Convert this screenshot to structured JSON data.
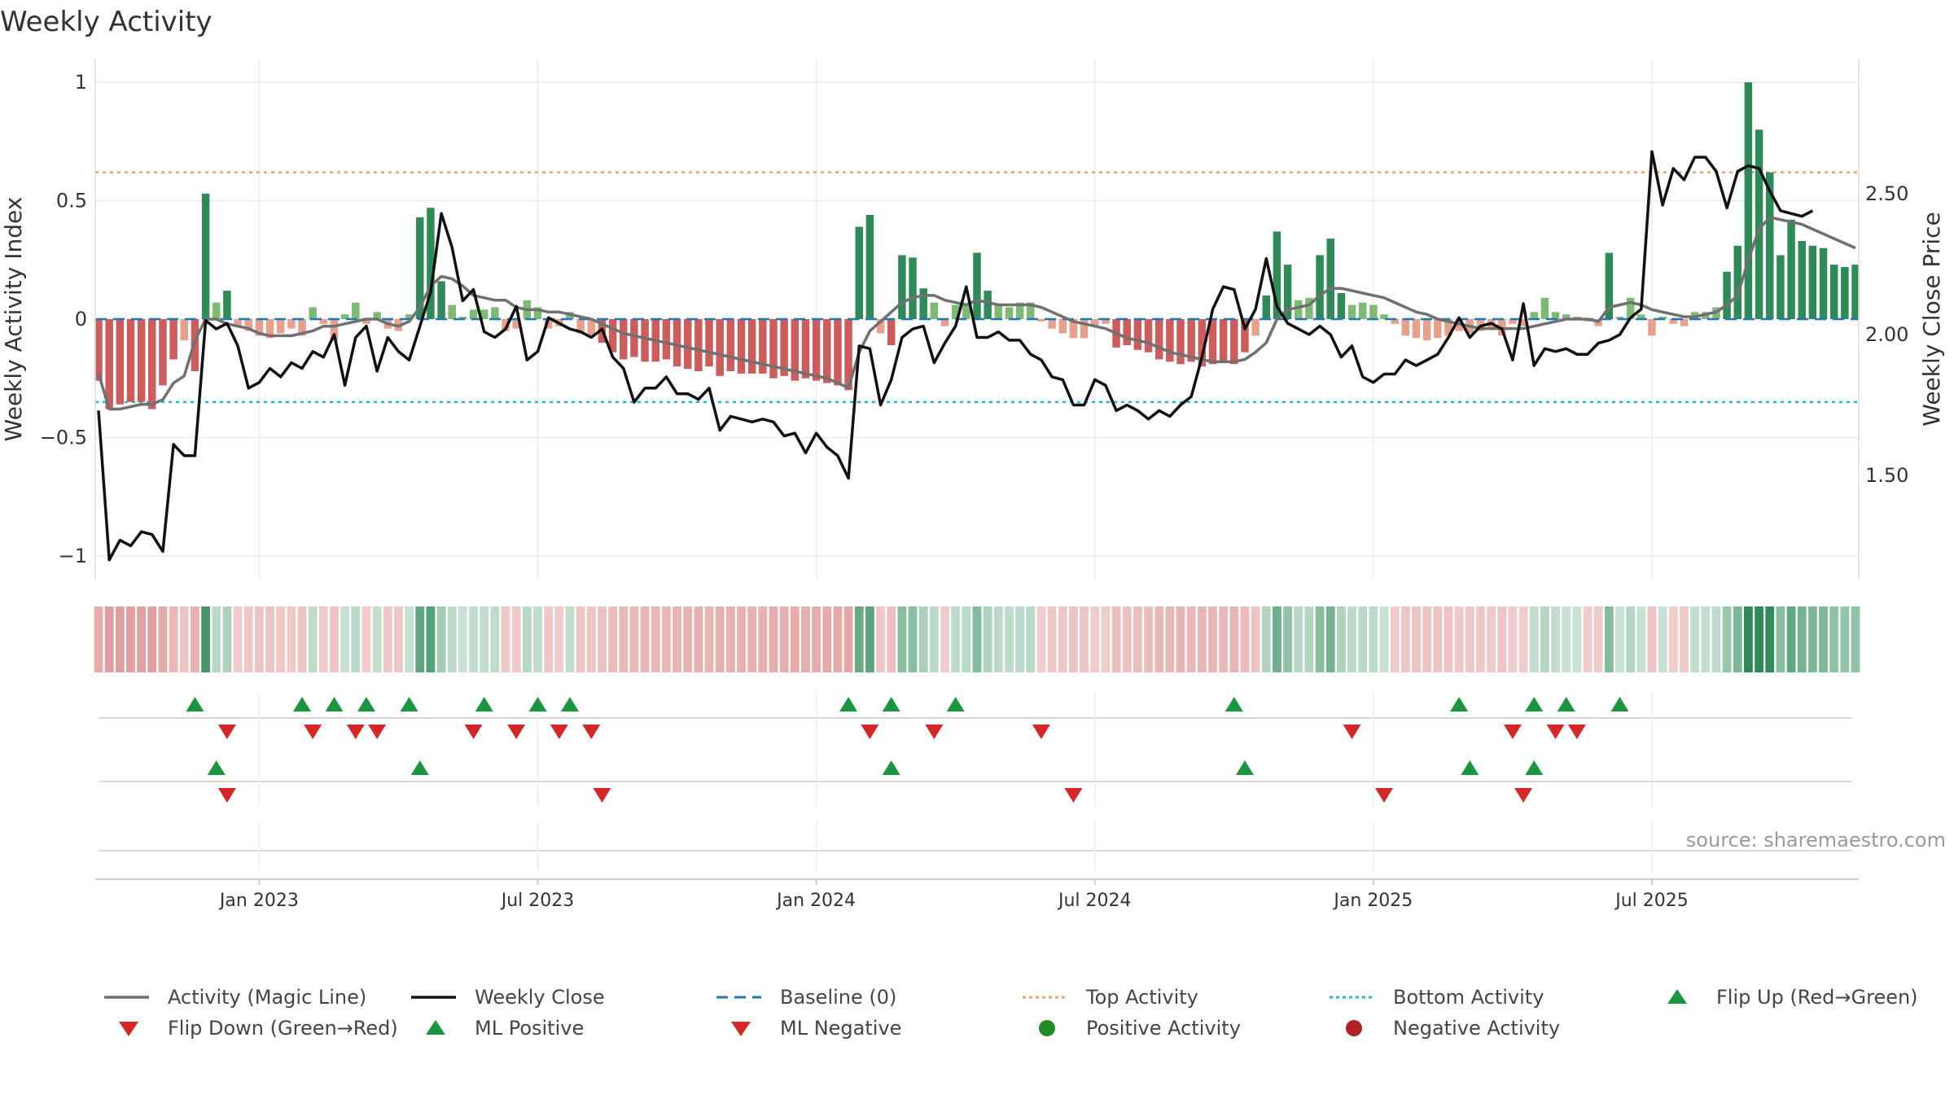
{
  "chart_data": {
    "type": "bar",
    "title": "Weekly Activity",
    "ylabel": "Weekly Activity Index",
    "ylabel_right": "Weekly Close Price",
    "ylim": [
      -1.1,
      1.1
    ],
    "ylim_right": [
      1.13,
      2.98
    ],
    "y_ticks": [
      {
        "value": 1,
        "label": "1"
      },
      {
        "value": 0.5,
        "label": "0.5"
      },
      {
        "value": 0,
        "label": "0"
      },
      {
        "value": -0.5,
        "label": "−0.5"
      },
      {
        "value": -1,
        "label": "−1"
      }
    ],
    "y_ticks_right": [
      {
        "value": 2.5,
        "label": "2.50"
      },
      {
        "value": 2.0,
        "label": "2.00"
      },
      {
        "value": 1.5,
        "label": "1.50"
      }
    ],
    "x_ticks": [
      {
        "week": 15,
        "label": "Jan 2023"
      },
      {
        "week": 41,
        "label": "Jul 2023"
      },
      {
        "week": 67,
        "label": "Jan 2024"
      },
      {
        "week": 93,
        "label": "Jul 2024"
      },
      {
        "week": 119,
        "label": "Jan 2025"
      },
      {
        "week": 145,
        "label": "Jul 2025"
      }
    ],
    "top_activity": 0.62,
    "bottom_activity": -0.35,
    "baseline": 0,
    "source": "source: sharemaestro.com",
    "colors": {
      "pos_strong": "#2e8b57",
      "pos_light": "#7dbb73",
      "neg_strong": "#cd5c5c",
      "neg_light": "#e8a08c",
      "magic_line": "#707070",
      "close_line": "#111111",
      "baseline": "#1f77b4",
      "top": "#f0a060",
      "bottom": "#17becf",
      "marker_up": "#1a9641",
      "marker_down": "#d62728",
      "pos_dot": "#228b22",
      "neg_dot": "#b22222"
    },
    "activity": [
      -0.26,
      -0.38,
      -0.36,
      -0.35,
      -0.35,
      -0.38,
      -0.28,
      -0.17,
      -0.09,
      -0.22,
      0.53,
      0.07,
      0.12,
      -0.03,
      -0.05,
      -0.07,
      -0.08,
      -0.06,
      -0.04,
      -0.07,
      0.05,
      -0.02,
      -0.09,
      0.02,
      0.07,
      -0.02,
      0.03,
      -0.04,
      -0.05,
      0.02,
      0.43,
      0.47,
      0.16,
      0.06,
      0.01,
      0.04,
      0.04,
      0.05,
      -0.05,
      -0.04,
      0.08,
      0.05,
      -0.04,
      -0.03,
      0.03,
      -0.06,
      -0.07,
      -0.1,
      -0.14,
      -0.17,
      -0.16,
      -0.18,
      -0.18,
      -0.17,
      -0.2,
      -0.21,
      -0.22,
      -0.2,
      -0.24,
      -0.22,
      -0.23,
      -0.23,
      -0.23,
      -0.25,
      -0.24,
      -0.26,
      -0.25,
      -0.26,
      -0.27,
      -0.28,
      -0.3,
      0.39,
      0.44,
      -0.06,
      -0.11,
      0.27,
      0.26,
      0.13,
      0.07,
      -0.03,
      0.06,
      0.06,
      0.28,
      0.12,
      0.06,
      0.05,
      0.07,
      0.07,
      -0.01,
      -0.04,
      -0.06,
      -0.08,
      -0.08,
      -0.03,
      -0.02,
      -0.12,
      -0.11,
      -0.13,
      -0.14,
      -0.17,
      -0.18,
      -0.19,
      -0.18,
      -0.2,
      -0.19,
      -0.18,
      -0.19,
      -0.14,
      -0.07,
      0.1,
      0.37,
      0.23,
      0.08,
      0.09,
      0.27,
      0.34,
      0.11,
      0.06,
      0.07,
      0.06,
      0.02,
      -0.02,
      -0.07,
      -0.08,
      -0.09,
      -0.08,
      -0.07,
      -0.05,
      -0.06,
      -0.05,
      -0.04,
      -0.07,
      -0.02,
      -0.03,
      0.03,
      0.09,
      0.03,
      0.02,
      0.01,
      -0.01,
      -0.03,
      0.28,
      0.01,
      0.09,
      0.02,
      -0.07,
      0.01,
      -0.02,
      -0.03,
      0.03,
      0.03,
      0.05,
      0.2,
      0.31,
      1.0,
      0.8,
      0.62,
      0.27,
      0.42,
      0.33,
      0.31,
      0.3,
      0.23,
      0.22,
      0.23
    ],
    "magic_line": [
      -0.23,
      -0.38,
      -0.38,
      -0.37,
      -0.36,
      -0.36,
      -0.34,
      -0.27,
      -0.24,
      -0.09,
      0.0,
      0.0,
      -0.02,
      -0.03,
      -0.04,
      -0.06,
      -0.07,
      -0.07,
      -0.07,
      -0.06,
      -0.05,
      -0.03,
      -0.03,
      -0.02,
      -0.01,
      0.0,
      0.0,
      -0.02,
      -0.03,
      -0.01,
      0.05,
      0.14,
      0.18,
      0.17,
      0.14,
      0.1,
      0.09,
      0.08,
      0.08,
      0.05,
      0.04,
      0.04,
      0.03,
      0.03,
      0.02,
      0.01,
      0.0,
      -0.02,
      -0.04,
      -0.06,
      -0.07,
      -0.08,
      -0.09,
      -0.1,
      -0.11,
      -0.12,
      -0.13,
      -0.14,
      -0.15,
      -0.16,
      -0.17,
      -0.18,
      -0.19,
      -0.2,
      -0.21,
      -0.22,
      -0.23,
      -0.24,
      -0.25,
      -0.27,
      -0.29,
      -0.14,
      -0.05,
      -0.01,
      0.03,
      0.07,
      0.09,
      0.1,
      0.1,
      0.08,
      0.07,
      0.06,
      0.08,
      0.07,
      0.06,
      0.06,
      0.06,
      0.06,
      0.05,
      0.03,
      0.01,
      -0.01,
      -0.02,
      -0.03,
      -0.04,
      -0.06,
      -0.08,
      -0.09,
      -0.1,
      -0.12,
      -0.14,
      -0.15,
      -0.16,
      -0.17,
      -0.18,
      -0.18,
      -0.18,
      -0.17,
      -0.14,
      -0.1,
      0.0,
      0.04,
      0.05,
      0.06,
      0.1,
      0.13,
      0.13,
      0.12,
      0.11,
      0.1,
      0.09,
      0.07,
      0.05,
      0.03,
      0.02,
      0.0,
      -0.01,
      -0.02,
      -0.03,
      -0.04,
      -0.04,
      -0.04,
      -0.04,
      -0.04,
      -0.03,
      -0.02,
      -0.01,
      0.0,
      0.0,
      0.0,
      -0.01,
      0.05,
      0.06,
      0.07,
      0.06,
      0.04,
      0.03,
      0.02,
      0.01,
      0.01,
      0.02,
      0.03,
      0.06,
      0.1,
      0.25,
      0.38,
      0.43,
      0.42,
      0.41,
      0.4,
      0.38,
      0.36,
      0.34,
      0.32,
      0.3
    ],
    "close": [
      1.73,
      1.2,
      1.27,
      1.25,
      1.3,
      1.29,
      1.23,
      1.61,
      1.57,
      1.57,
      2.05,
      2.02,
      2.04,
      1.96,
      1.81,
      1.83,
      1.88,
      1.85,
      1.9,
      1.88,
      1.94,
      1.92,
      2.0,
      1.82,
      1.99,
      2.03,
      1.87,
      1.99,
      1.94,
      1.91,
      2.03,
      2.15,
      2.43,
      2.31,
      2.12,
      2.16,
      2.01,
      1.99,
      2.02,
      2.1,
      1.91,
      1.94,
      2.06,
      2.04,
      2.02,
      2.01,
      1.99,
      2.02,
      1.92,
      1.88,
      1.76,
      1.81,
      1.81,
      1.85,
      1.79,
      1.79,
      1.77,
      1.81,
      1.66,
      1.71,
      1.7,
      1.69,
      1.7,
      1.69,
      1.64,
      1.65,
      1.58,
      1.65,
      1.6,
      1.57,
      1.49,
      1.96,
      1.95,
      1.75,
      1.84,
      1.99,
      2.02,
      2.03,
      1.9,
      1.97,
      2.03,
      2.17,
      1.99,
      1.99,
      2.01,
      1.98,
      1.98,
      1.93,
      1.91,
      1.85,
      1.84,
      1.75,
      1.75,
      1.84,
      1.82,
      1.73,
      1.75,
      1.73,
      1.7,
      1.73,
      1.71,
      1.75,
      1.78,
      1.92,
      2.09,
      2.17,
      2.16,
      2.02,
      2.09,
      2.27,
      2.1,
      2.04,
      2.02,
      2.0,
      2.03,
      2.0,
      1.92,
      1.96,
      1.85,
      1.83,
      1.86,
      1.86,
      1.91,
      1.89,
      1.91,
      1.93,
      1.99,
      2.06,
      1.99,
      2.03,
      2.04,
      2.02,
      1.91,
      2.11,
      1.89,
      1.95,
      1.94,
      1.95,
      1.93,
      1.93,
      1.97,
      1.98,
      2.0,
      2.06,
      2.09,
      2.65,
      2.46,
      2.59,
      2.55,
      2.63,
      2.63,
      2.58,
      2.45,
      2.58,
      2.6,
      2.59,
      2.51,
      2.44,
      2.43,
      2.42,
      2.44
    ],
    "strip_values": [
      -0.26,
      -0.38,
      -0.36,
      -0.35,
      -0.35,
      -0.38,
      -0.28,
      -0.17,
      -0.09,
      -0.22,
      0.53,
      0.07,
      0.12,
      -0.03,
      -0.05,
      -0.07,
      -0.08,
      -0.06,
      -0.04,
      -0.07,
      0.05,
      -0.02,
      -0.09,
      0.02,
      0.07,
      -0.02,
      0.03,
      -0.04,
      -0.05,
      0.02,
      0.43,
      0.47,
      0.16,
      0.06,
      0.01,
      0.04,
      0.04,
      0.05,
      -0.05,
      -0.04,
      0.08,
      0.05,
      -0.04,
      -0.03,
      0.03,
      -0.06,
      -0.07,
      -0.1,
      -0.14,
      -0.17,
      -0.16,
      -0.18,
      -0.18,
      -0.17,
      -0.2,
      -0.21,
      -0.22,
      -0.2,
      -0.24,
      -0.22,
      -0.23,
      -0.23,
      -0.23,
      -0.25,
      -0.24,
      -0.26,
      -0.25,
      -0.26,
      -0.27,
      -0.28,
      -0.3,
      0.39,
      0.44,
      -0.06,
      -0.11,
      0.27,
      0.26,
      0.13,
      0.07,
      -0.03,
      0.06,
      0.06,
      0.28,
      0.12,
      0.06,
      0.05,
      0.07,
      0.07,
      -0.01,
      -0.04,
      -0.06,
      -0.08,
      -0.08,
      -0.03,
      -0.02,
      -0.12,
      -0.11,
      -0.13,
      -0.14,
      -0.17,
      -0.18,
      -0.19,
      -0.18,
      -0.2,
      -0.19,
      -0.18,
      -0.19,
      -0.14,
      -0.07,
      0.1,
      0.37,
      0.23,
      0.08,
      0.09,
      0.27,
      0.34,
      0.11,
      0.06,
      0.07,
      0.06,
      0.02,
      -0.02,
      -0.07,
      -0.08,
      -0.09,
      -0.08,
      -0.07,
      -0.05,
      -0.06,
      -0.05,
      -0.04,
      -0.07,
      -0.02,
      -0.03,
      0.03,
      0.09,
      0.03,
      0.02,
      0.01,
      -0.01,
      -0.03,
      0.28,
      0.01,
      0.09,
      0.02,
      -0.07,
      0.01,
      -0.02,
      -0.03,
      0.03,
      0.03,
      0.05,
      0.2,
      0.31,
      1.0,
      0.8,
      0.62,
      0.27,
      0.42,
      0.33,
      0.31,
      0.3,
      0.23,
      0.22,
      0.23
    ],
    "flip_up_weeks": [
      9,
      19,
      22,
      25,
      29,
      36,
      41,
      44,
      70,
      74,
      80,
      106,
      127,
      134,
      137,
      142
    ],
    "flip_down_weeks": [
      12,
      20,
      24,
      26,
      35,
      39,
      43,
      46,
      72,
      78,
      88,
      117,
      132,
      136,
      138
    ],
    "ml_positive_weeks": [
      11,
      30,
      74,
      107,
      128,
      134
    ],
    "ml_negative_weeks": [
      12,
      47,
      91,
      120,
      133
    ],
    "legend": [
      {
        "label": "Activity (Magic Line)",
        "kind": "magic"
      },
      {
        "label": "Weekly Close",
        "kind": "close"
      },
      {
        "label": "Baseline (0)",
        "kind": "baseline"
      },
      {
        "label": "Top Activity",
        "kind": "top"
      },
      {
        "label": "Bottom Activity",
        "kind": "bottom"
      },
      {
        "label": "Flip Up (Red→Green)",
        "kind": "tri-up"
      },
      {
        "label": "Flip Down (Green→Red)",
        "kind": "tri-down"
      },
      {
        "label": "ML Positive",
        "kind": "tri-up"
      },
      {
        "label": "ML Negative",
        "kind": "tri-down"
      },
      {
        "label": "Positive Activity",
        "kind": "dot-pos"
      },
      {
        "label": "Negative Activity",
        "kind": "dot-neg"
      }
    ]
  }
}
